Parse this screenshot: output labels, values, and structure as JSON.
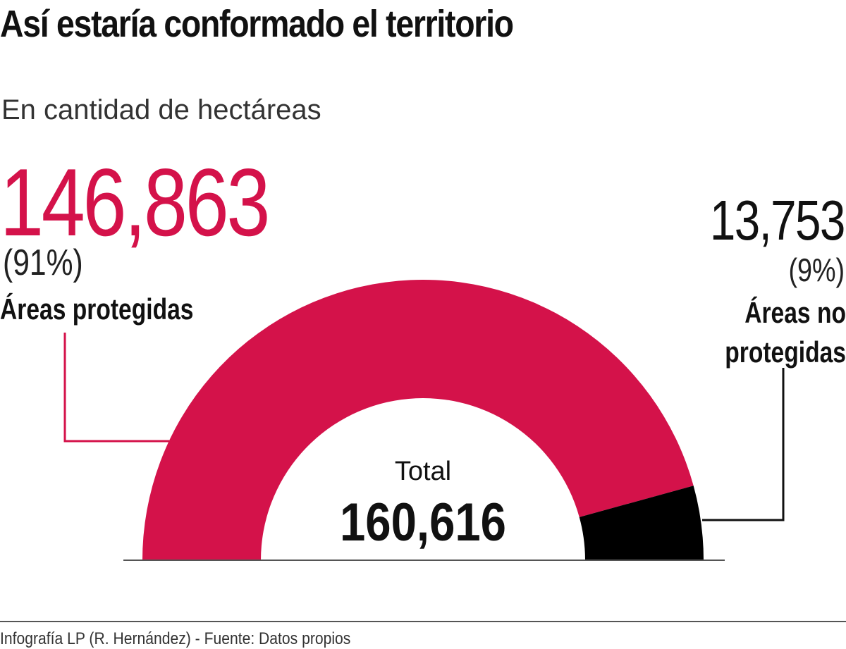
{
  "title": "Así estaría conformado el territorio",
  "subtitle": "En cantidad de hectáreas",
  "chart_data": {
    "type": "pie",
    "style": "half-donut",
    "title": "Así estaría conformado el territorio",
    "subtitle": "En cantidad de hectáreas",
    "total_label": "Total",
    "total": 160616,
    "total_display": "160,616",
    "slices": [
      {
        "label": "Áreas protegidas",
        "value": 146863,
        "value_display": "146,863",
        "percent_display": "(91%)",
        "color": "#d4124a"
      },
      {
        "label": "Áreas no protegidas",
        "value": 13753,
        "value_display": "13,753",
        "percent_display": "(9%)",
        "color": "#000000"
      }
    ]
  },
  "footer": "Infografía LP (R. Hernández)  - Fuente: Datos propios"
}
